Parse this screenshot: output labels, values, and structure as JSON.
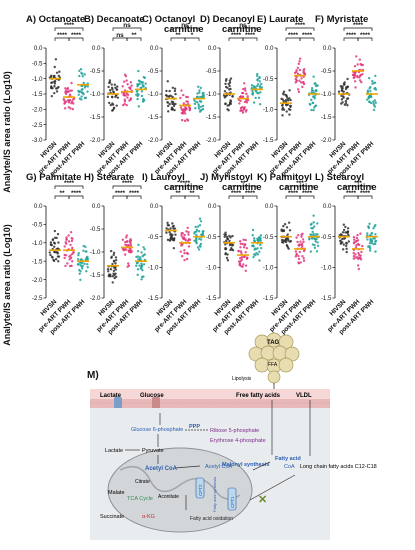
{
  "figure": {
    "y_axis_label": "Analyte/IS area ratio (Log10)",
    "group_labels": [
      "HIVSN",
      "pre-ART PWH",
      "post-ART PWH"
    ],
    "group_colors": [
      "#2f2f2f",
      "#e0357c",
      "#1fa19a"
    ]
  },
  "chart_data": [
    {
      "type": "scatter",
      "panel": "A)",
      "title": "Octanoate",
      "groups": [
        "HIVSN",
        "pre-ART PWH",
        "post-ART PWH"
      ],
      "medians": [
        -1.0,
        -1.6,
        -1.2
      ],
      "ylim": [
        -3.0,
        0.0
      ],
      "yticks": [
        "0.0",
        "-0.5",
        "-1.0",
        "-1.5",
        "-2.0",
        "-2.5",
        "-3.0"
      ],
      "sig": [
        "****",
        "****",
        "****"
      ]
    },
    {
      "type": "scatter",
      "panel": "B)",
      "title": "Decanoate",
      "groups": [
        "HIVSN",
        "pre-ART PWH",
        "post-ART PWH"
      ],
      "medians": [
        -1.0,
        -0.95,
        -0.9
      ],
      "ylim": [
        -2.0,
        0.0
      ],
      "yticks": [
        "0.0",
        "-0.5",
        "-1.0",
        "-1.5",
        "-2.0"
      ],
      "sig": [
        "ns",
        "ns",
        "**"
      ]
    },
    {
      "type": "scatter",
      "panel": "C)",
      "title": "Octanoyl carnitine",
      "groups": [
        "HIVSN",
        "pre-ART PWH",
        "post-ART PWH"
      ],
      "medians": [
        -1.1,
        -1.25,
        -1.1
      ],
      "ylim": [
        -2.0,
        0.0
      ],
      "yticks": [
        "0.0",
        "-0.5",
        "-1.0",
        "-1.5",
        "-2.0"
      ],
      "sig": [
        "ns",
        "**",
        "*"
      ]
    },
    {
      "type": "scatter",
      "panel": "D)",
      "title": "Decanoyl carnitine",
      "groups": [
        "HIVSN",
        "pre-ART PWH",
        "post-ART PWH"
      ],
      "medians": [
        -1.0,
        -1.1,
        -0.9
      ],
      "ylim": [
        -2.0,
        0.0
      ],
      "yticks": [
        "0.0",
        "-0.5",
        "-1.0",
        "-1.5",
        "-2.0"
      ],
      "sig": [
        "ns",
        "****",
        "****"
      ]
    },
    {
      "type": "scatter",
      "panel": "E)",
      "title": "Laurate",
      "groups": [
        "HIVSN",
        "pre-ART PWH",
        "post-ART PWH"
      ],
      "medians": [
        -0.9,
        -0.45,
        -0.75
      ],
      "ylim": [
        -1.5,
        0.0
      ],
      "yticks": [
        "0.0",
        "-0.5",
        "-1.0",
        "-1.5"
      ],
      "sig": [
        "****",
        "****",
        "****"
      ]
    },
    {
      "type": "scatter",
      "panel": "F)",
      "title": "Myristate",
      "groups": [
        "HIVSN",
        "pre-ART PWH",
        "post-ART PWH"
      ],
      "medians": [
        -1.0,
        -0.5,
        -1.0
      ],
      "ylim": [
        -2.0,
        0.0
      ],
      "yticks": [
        "0.0",
        "-0.5",
        "-1.0",
        "-1.5",
        "-2.0"
      ],
      "sig": [
        "****",
        "****",
        "****"
      ]
    },
    {
      "type": "scatter",
      "panel": "G)",
      "title": "Palmitate",
      "groups": [
        "HIVSN",
        "pre-ART PWH",
        "post-ART PWH"
      ],
      "medians": [
        -1.2,
        -1.2,
        -1.5
      ],
      "ylim": [
        -2.5,
        0.0
      ],
      "yticks": [
        "0.0",
        "-0.5",
        "-1.0",
        "-1.5",
        "-2.0",
        "-2.5"
      ],
      "sig": [
        "****",
        "**",
        "****"
      ]
    },
    {
      "type": "scatter",
      "panel": "H)",
      "title": "Stearate",
      "groups": [
        "HIVSN",
        "pre-ART PWH",
        "post-ART PWH"
      ],
      "medians": [
        -1.3,
        -0.9,
        -1.2
      ],
      "ylim": [
        -2.0,
        0.0
      ],
      "yticks": [
        "0.0",
        "-0.5",
        "-1.0",
        "-1.5",
        "-2.0"
      ],
      "sig": [
        "****",
        "****",
        "****"
      ]
    },
    {
      "type": "scatter",
      "panel": "I)",
      "title": "Lauroyl carnitine",
      "groups": [
        "HIVSN",
        "pre-ART PWH",
        "post-ART PWH"
      ],
      "medians": [
        -0.4,
        -0.6,
        -0.5
      ],
      "ylim": [
        -1.5,
        0.0
      ],
      "yticks": [
        "0.0",
        "-0.5",
        "-1.0",
        "-1.5"
      ],
      "sig": [
        "****",
        "**",
        "**"
      ]
    },
    {
      "type": "scatter",
      "panel": "J)",
      "title": "Myristoyl carnitine",
      "groups": [
        "HIVSN",
        "pre-ART PWH",
        "post-ART PWH"
      ],
      "medians": [
        -0.6,
        -0.8,
        -0.6
      ],
      "ylim": [
        -1.5,
        0.0
      ],
      "yticks": [
        "0.0",
        "-0.5",
        "-1.0",
        "-1.5"
      ],
      "sig": [
        "**",
        "****",
        "****"
      ]
    },
    {
      "type": "scatter",
      "panel": "K)",
      "title": "Palmitoyl carnitine",
      "groups": [
        "HIVSN",
        "pre-ART PWH",
        "post-ART PWH"
      ],
      "medians": [
        -0.5,
        -0.7,
        -0.5
      ],
      "ylim": [
        -1.5,
        0.0
      ],
      "yticks": [
        "0.0",
        "-0.5",
        "-1.0",
        "-1.5"
      ],
      "sig": [
        "***",
        "****",
        "****"
      ]
    },
    {
      "type": "scatter",
      "panel": "L)",
      "title": "Stearoyl carnitine",
      "groups": [
        "HIVSN",
        "pre-ART PWH",
        "post-ART PWH"
      ],
      "medians": [
        -0.5,
        -0.7,
        -0.5
      ],
      "ylim": [
        -1.5,
        0.0
      ],
      "yticks": [
        "0.0",
        "-0.5",
        "-1.0",
        "-1.5"
      ],
      "sig": [
        "***",
        "****",
        "****"
      ]
    }
  ],
  "panel_m": {
    "label": "M)",
    "tag": "TAG",
    "ffa": "FFA",
    "lipolysis": "Lipolysis",
    "lactate": "Lactate",
    "glucose": "Glucose",
    "free_fatty_acids": "Free fatty acids",
    "vldl": "VLDL",
    "transporter_left": "MCT",
    "transporter_mid": "GLUT",
    "g6p": "Glucose 6-phosphate",
    "ppp": "PPP",
    "r5p": "Ribose 5-phosphate",
    "e4p": "Erythrose 4-phosphate",
    "lactate2": "Lactate",
    "pyruvate": "Pyruvate",
    "acetyl_coa": "Acetyl CoA",
    "acetyl_coa2": "Acetyl CoA",
    "citrate": "Citrate",
    "malate": "Malate",
    "tca": "TCA Cycle",
    "aconitate": "Aconitate",
    "succinate": "Succinate",
    "akg": "α-KG",
    "malonyl": "Malonyl synthesis",
    "fatty_acid": "Fatty acid",
    "coa": "CoA",
    "long_chain": "Long chain fatty acids C12-C18",
    "fao": "Fatty acid oxidation",
    "cpt1": "CPT1",
    "cpt2": "CPT2",
    "fa_oxidation_label": "Fatty acid synthesis"
  }
}
